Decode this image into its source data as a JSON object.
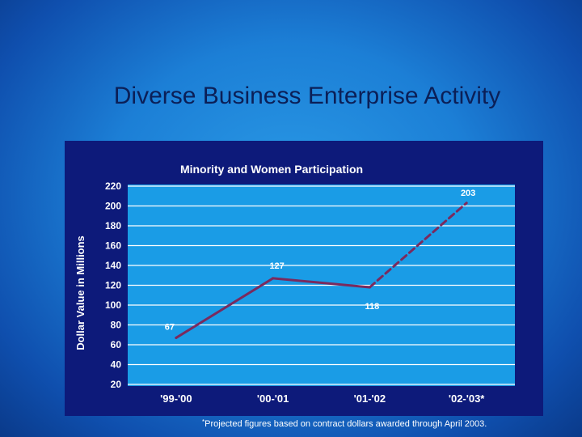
{
  "slide": {
    "title": "Diverse Business Enterprise Activity",
    "footnote_mark": "*",
    "footnote": "Projected figures based on contract dollars awarded through April 2003."
  },
  "colors": {
    "panel": "#0d1a7a",
    "plot": "#1a9ce6",
    "grid": "#ffffff",
    "line": "#7a2a5e",
    "text": "#ffffff"
  },
  "chart_data": {
    "type": "line",
    "title": "Minority and Women Participation",
    "ylabel": "Dollar Value in Millions",
    "xlabel": "",
    "categories": [
      "'99-'00",
      "'00-'01",
      "'01-'02",
      "'02-'03*"
    ],
    "values": [
      67,
      127,
      118,
      203
    ],
    "data_labels": [
      "67",
      "127",
      "118",
      "203"
    ],
    "projected_segment": "'01-'02 to '02-'03* (dashed)",
    "ylim": [
      20,
      220
    ],
    "yticks": [
      20,
      40,
      60,
      80,
      100,
      120,
      140,
      160,
      180,
      200,
      220
    ],
    "grid": true,
    "legend": "none"
  }
}
